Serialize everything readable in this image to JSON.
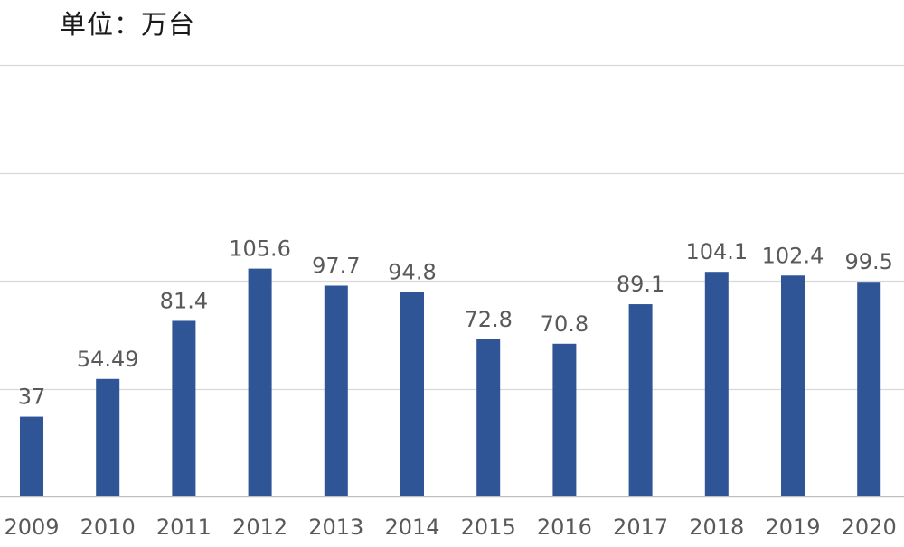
{
  "unit_label": "单位：万台",
  "chart_data": {
    "type": "bar",
    "title": "",
    "unit": "单位：万台",
    "xlabel": "",
    "ylabel": "",
    "categories": [
      "2009",
      "2010",
      "2011",
      "2012",
      "2013",
      "2014",
      "2015",
      "2016",
      "2017",
      "2018",
      "2019",
      "2020"
    ],
    "values": [
      37,
      54.49,
      81.4,
      105.6,
      97.7,
      94.8,
      72.8,
      70.8,
      89.1,
      104.1,
      102.4,
      99.5
    ],
    "data_labels": [
      "37",
      "54.49",
      "81.4",
      "105.6",
      "97.7",
      "94.8",
      "72.8",
      "70.8",
      "89.1",
      "104.1",
      "102.4",
      "99.5"
    ],
    "ylim": [
      0,
      200
    ],
    "gridlines": [
      0,
      50,
      100,
      150,
      200
    ],
    "grid": true,
    "legend": "none",
    "colors": {
      "bar": "#2F5597",
      "grid": "#D9D9D9",
      "axis": "#BFBFBF",
      "text": "#595959"
    }
  }
}
